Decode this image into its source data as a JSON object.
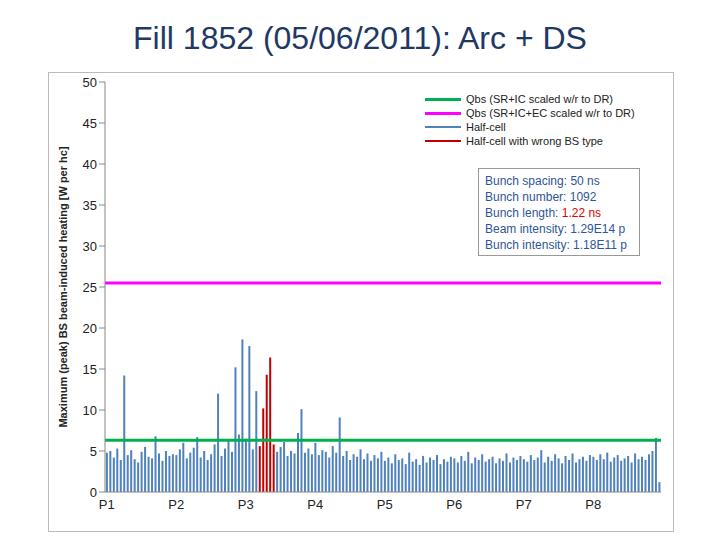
{
  "chart_data": {
    "type": "bar",
    "title": "Fill 1852 (05/06/2011): Arc + DS",
    "y_label": "Maximum (peak) BS beam-induced heating [W per hc]",
    "categories": [
      "P1",
      null,
      null,
      null,
      null,
      null,
      null,
      null,
      null,
      null,
      null,
      null,
      null,
      null,
      null,
      null,
      null,
      null,
      null,
      null,
      "P2",
      null,
      null,
      null,
      null,
      null,
      null,
      null,
      null,
      null,
      null,
      null,
      null,
      null,
      null,
      null,
      null,
      null,
      null,
      null,
      "P3",
      null,
      null,
      null,
      null,
      null,
      null,
      null,
      null,
      null,
      null,
      null,
      null,
      null,
      null,
      null,
      null,
      null,
      null,
      null,
      "P4",
      null,
      null,
      null,
      null,
      null,
      null,
      null,
      null,
      null,
      null,
      null,
      null,
      null,
      null,
      null,
      null,
      null,
      null,
      null,
      "P5",
      null,
      null,
      null,
      null,
      null,
      null,
      null,
      null,
      null,
      null,
      null,
      null,
      null,
      null,
      null,
      null,
      null,
      null,
      null,
      "P6",
      null,
      null,
      null,
      null,
      null,
      null,
      null,
      null,
      null,
      null,
      null,
      null,
      null,
      null,
      null,
      null,
      null,
      null,
      null,
      "P7",
      null,
      null,
      null,
      null,
      null,
      null,
      null,
      null,
      null,
      null,
      null,
      null,
      null,
      null,
      null,
      null,
      null,
      null,
      null,
      "P8",
      null,
      null,
      null,
      null,
      null,
      null,
      null,
      null,
      null,
      null,
      null,
      null,
      null,
      null,
      null,
      null,
      null,
      null,
      null
    ],
    "series": [
      {
        "name": "Half-cell",
        "color": "#4f81bd",
        "values": [
          4.8,
          5.0,
          4.2,
          5.3,
          3.9,
          14.2,
          4.5,
          5.1,
          4.0,
          3.6,
          4.9,
          5.5,
          4.3,
          4.1,
          6.8,
          4.7,
          3.8,
          5.0,
          4.4,
          4.6,
          4.5,
          5.2,
          6.0,
          4.1,
          4.8,
          5.4,
          6.7,
          4.2,
          5.0,
          3.9,
          4.6,
          5.8,
          12.0,
          4.4,
          5.3,
          6.2,
          4.9,
          15.2,
          7.0,
          18.6,
          6.5,
          17.8,
          5.2,
          12.3,
          null,
          null,
          null,
          null,
          null,
          4.9,
          5.5,
          6.1,
          4.4,
          5.0,
          4.7,
          7.2,
          10.1,
          4.8,
          5.3,
          4.6,
          6.0,
          4.5,
          5.1,
          4.9,
          4.2,
          5.6,
          4.8,
          9.1,
          4.4,
          5.0,
          3.9,
          4.6,
          4.3,
          5.2,
          4.0,
          4.7,
          3.8,
          4.5,
          4.1,
          4.9,
          3.8,
          4.2,
          3.5,
          4.6,
          3.9,
          4.1,
          3.4,
          4.8,
          3.7,
          4.0,
          3.3,
          4.4,
          3.6,
          4.2,
          3.9,
          4.5,
          3.4,
          4.0,
          3.7,
          4.3,
          4.1,
          3.6,
          4.4,
          3.8,
          4.9,
          3.5,
          4.2,
          3.9,
          4.6,
          3.7,
          4.0,
          4.3,
          3.5,
          4.1,
          3.8,
          4.7,
          3.6,
          4.2,
          3.9,
          4.4,
          4.0,
          3.7,
          4.5,
          3.9,
          4.2,
          5.1,
          3.6,
          4.3,
          3.8,
          4.6,
          4.1,
          3.5,
          4.4,
          3.9,
          4.7,
          3.6,
          4.0,
          4.3,
          3.8,
          4.5,
          4.3,
          3.9,
          4.6,
          4.0,
          4.8,
          3.7,
          4.2,
          4.5,
          3.8,
          4.1,
          4.4,
          3.6,
          4.7,
          4.0,
          4.3,
          3.9,
          4.6,
          5.0,
          6.6,
          1.2
        ]
      },
      {
        "name": "Half-cell with wrong BS type",
        "color": "#c00000",
        "values": [
          null,
          null,
          null,
          null,
          null,
          null,
          null,
          null,
          null,
          null,
          null,
          null,
          null,
          null,
          null,
          null,
          null,
          null,
          null,
          null,
          null,
          null,
          null,
          null,
          null,
          null,
          null,
          null,
          null,
          null,
          null,
          null,
          null,
          null,
          null,
          null,
          null,
          null,
          null,
          null,
          null,
          null,
          null,
          null,
          5.6,
          10.2,
          14.3,
          16.4,
          5.8,
          null,
          null,
          null,
          null,
          null,
          null,
          null,
          null,
          null,
          null,
          null,
          null,
          null,
          null,
          null,
          null,
          null,
          null,
          null,
          null,
          null,
          null,
          null,
          null,
          null,
          null,
          null,
          null,
          null,
          null,
          null,
          null,
          null,
          null,
          null,
          null,
          null,
          null,
          null,
          null,
          null,
          null,
          null,
          null,
          null,
          null,
          null,
          null,
          null,
          null,
          null,
          null,
          null,
          null,
          null,
          null,
          null,
          null,
          null,
          null,
          null,
          null,
          null,
          null,
          null,
          null,
          null,
          null,
          null,
          null,
          null,
          null,
          null,
          null,
          null,
          null,
          null,
          null,
          null,
          null,
          null,
          null,
          null,
          null,
          null,
          null,
          null,
          null,
          null,
          null,
          null,
          null,
          null,
          null,
          null,
          null,
          null,
          null,
          null,
          null,
          null,
          null,
          null,
          null,
          null,
          null,
          null,
          null,
          null,
          null,
          null
        ]
      }
    ],
    "hlines": [
      {
        "name": "Qbs (SR+IC scaled w/r to DR)",
        "color": "#00b050",
        "value": 6.3
      },
      {
        "name": "Qbs (SR+IC+EC scaled w/r to DR)",
        "color": "#ff00ff",
        "value": 25.5
      }
    ],
    "annotations": [
      [
        {
          "text": "Bunch spacing: 50 ns"
        }
      ],
      [
        {
          "text": "Bunch number: 1092"
        }
      ],
      [
        {
          "text": "Bunch length: "
        },
        {
          "text": "1.22 ns",
          "color": "#e00000"
        }
      ],
      [
        {
          "text": "Beam intensity: 1.29E14 p"
        }
      ],
      [
        {
          "text": "Bunch intensity: 1.18E11 p"
        }
      ]
    ],
    "stacked": true,
    "grid": false,
    "ylim": [
      0,
      50
    ],
    "yticks": [
      0,
      5,
      10,
      15,
      20,
      25,
      30,
      35,
      40,
      45,
      50
    ]
  }
}
